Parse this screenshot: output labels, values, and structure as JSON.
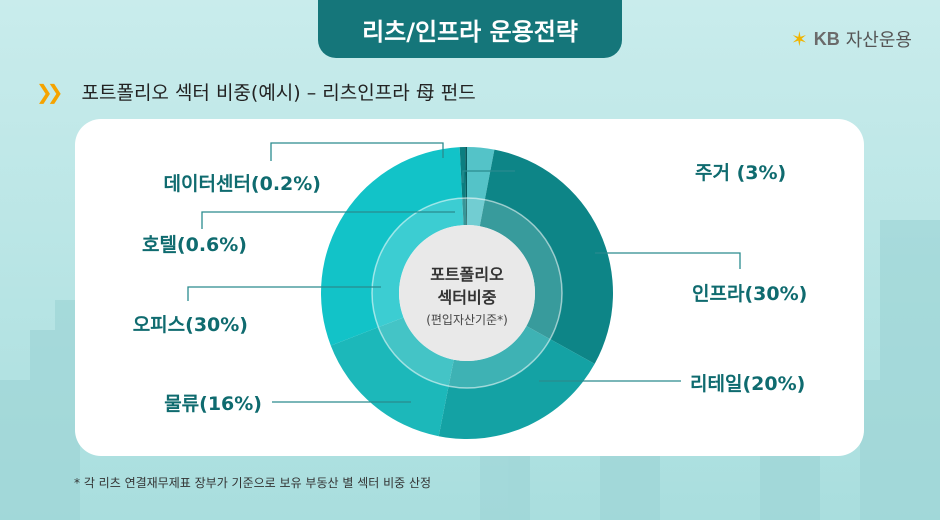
{
  "header": {
    "title": "리츠/인프라 운용전략",
    "logo_mark": "KB",
    "logo_text": "자산운용"
  },
  "subheading": {
    "arrow_icon": "double-chevron-right-icon",
    "text": "포트폴리오 섹터 비중(예시) – 리츠인프라 母 펀드"
  },
  "chart_data": {
    "type": "pie",
    "variant": "donut",
    "center_label": {
      "line1": "포트폴리오",
      "line2": "섹터비중",
      "line3": "(편입자산기준*)"
    },
    "slices": [
      {
        "name": "주거",
        "label": "주거 (3%)",
        "value": 3,
        "color": "#54c3c8",
        "label_color": "#0f6b6f"
      },
      {
        "name": "인프라",
        "label": "인프라(30%)",
        "value": 30,
        "color": "#0d8587",
        "label_color": "#0f6b6f"
      },
      {
        "name": "리테일",
        "label": "리테일(20%)",
        "value": 20,
        "color": "#14a2a4",
        "label_color": "#0f6b6f"
      },
      {
        "name": "물류",
        "label": "물류(16%)",
        "value": 16,
        "color": "#1cb8ba",
        "label_color": "#0f6b6f"
      },
      {
        "name": "오피스",
        "label": "오피스(30%)",
        "value": 30,
        "color": "#12c3c8",
        "label_color": "#0f6b6f"
      },
      {
        "name": "호텔",
        "label": "호텔(0.6%)",
        "value": 0.6,
        "color": "#0b7e80",
        "label_color": "#0f6b6f"
      },
      {
        "name": "데이터센터",
        "label": "데이터센터(0.2%)",
        "value": 0.2,
        "color": "#06595b",
        "label_color": "#0f6b6f"
      }
    ]
  },
  "footnote": "* 각 리츠 연결재무제표 장부가 기준으로 보유 부동산 별 섹터 비중 산정"
}
